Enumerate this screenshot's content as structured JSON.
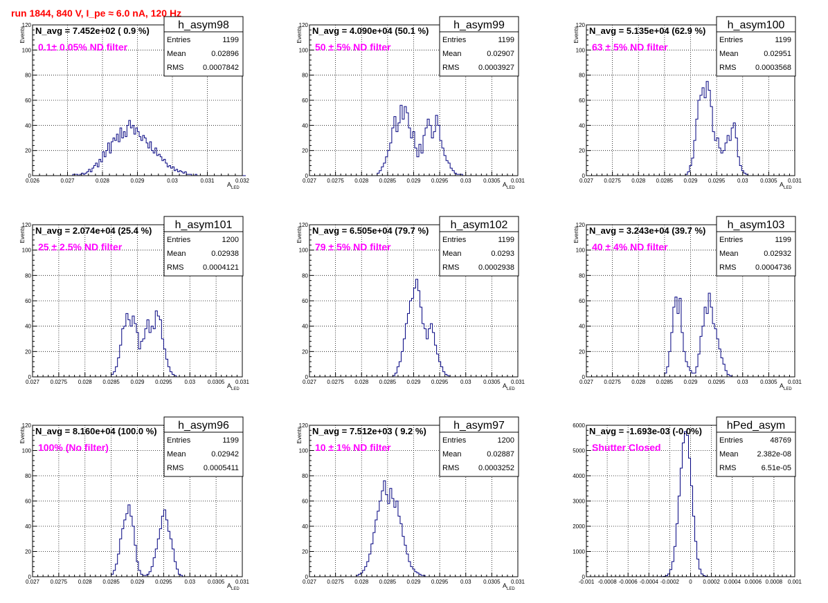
{
  "page": {
    "title": "run 1844,   840 V, I_pe ≈ 6.0 nA, 120 Hz"
  },
  "colors": {
    "title": "#ff0000",
    "histogram": "#00007f",
    "annotation": "#ff00ff",
    "grid": "#000000",
    "text": "#000000"
  },
  "chart_data": [
    {
      "type": "bar",
      "name": "h_asym98",
      "navg": "N_avg = 7.452e+02 ( 0.9 %)",
      "annotation": "0.1± 0.05% ND filter",
      "stats": [
        [
          "Entries",
          "1199"
        ],
        [
          "Mean",
          "0.02896"
        ],
        [
          "RMS",
          "0.0007842"
        ]
      ],
      "ylabel": "Events",
      "xlabel": "A",
      "xlabel_sub": "LED",
      "xlim": [
        0.026,
        0.032
      ],
      "ylim": [
        0,
        120
      ],
      "xticks": [
        0.026,
        0.027,
        0.028,
        0.029,
        0.03,
        0.031,
        0.032
      ],
      "xtick_labels": [
        "0.026",
        "0.027",
        "0.028",
        "0.029",
        "0.03",
        "0.031",
        "0.032"
      ],
      "yticks": [
        0,
        20,
        40,
        60,
        80,
        100,
        120
      ],
      "ytick_labels": [
        "0",
        "20",
        "40",
        "60",
        "80",
        "100",
        "120"
      ],
      "bin_start": 0.0265,
      "bin_width": 5e-05,
      "values": [
        0,
        0,
        0,
        0,
        0,
        0,
        0,
        0,
        0,
        0,
        0,
        0,
        0,
        1,
        1,
        1,
        0,
        1,
        2,
        1,
        2,
        3,
        5,
        3,
        6,
        8,
        10,
        7,
        13,
        11,
        19,
        15,
        20,
        26,
        18,
        27,
        30,
        28,
        33,
        27,
        38,
        30,
        35,
        31,
        40,
        44,
        38,
        40,
        33,
        38,
        35,
        31,
        28,
        32,
        30,
        26,
        22,
        27,
        20,
        18,
        22,
        16,
        17,
        15,
        12,
        13,
        10,
        7,
        8,
        6,
        7,
        4,
        5,
        3,
        4,
        3,
        2,
        3,
        1,
        1,
        1,
        0,
        0,
        1,
        0,
        0,
        0,
        0,
        0,
        0,
        0,
        0,
        0,
        0,
        0,
        0,
        0,
        0,
        0,
        0,
        0,
        0,
        0,
        0,
        0,
        0,
        0,
        0,
        0,
        0,
        0,
        0
      ]
    },
    {
      "type": "bar",
      "name": "h_asym99",
      "navg": "N_avg = 4.090e+04 (50.1 %)",
      "annotation": "50 ± 5% ND filter",
      "stats": [
        [
          "Entries",
          "1199"
        ],
        [
          "Mean",
          "0.02907"
        ],
        [
          "RMS",
          "0.0003927"
        ]
      ],
      "ylabel": "Events",
      "xlabel": "A",
      "xlabel_sub": "LED",
      "xlim": [
        0.027,
        0.031
      ],
      "ylim": [
        0,
        120
      ],
      "xticks": [
        0.027,
        0.0275,
        0.028,
        0.0285,
        0.029,
        0.0295,
        0.03,
        0.0305,
        0.031
      ],
      "xtick_labels": [
        "0.027",
        "0.0275",
        "0.028",
        "0.0285",
        "0.029",
        "0.0295",
        "0.03",
        "0.0305",
        "0.031"
      ],
      "yticks": [
        0,
        20,
        40,
        60,
        80,
        100,
        120
      ],
      "ytick_labels": [
        "0",
        "20",
        "40",
        "60",
        "80",
        "100",
        "120"
      ],
      "bin_start": 0.0283,
      "bin_width": 4e-05,
      "values": [
        2,
        4,
        7,
        10,
        15,
        20,
        26,
        38,
        47,
        35,
        42,
        56,
        45,
        55,
        50,
        38,
        30,
        35,
        22,
        15,
        25,
        18,
        32,
        38,
        45,
        40,
        30,
        35,
        48,
        40,
        28,
        22,
        16,
        12,
        10,
        6,
        4,
        2,
        1,
        1,
        1,
        0,
        0,
        0,
        0
      ]
    },
    {
      "type": "bar",
      "name": "h_asym100",
      "navg": "N_avg = 5.135e+04 (62.9 %)",
      "annotation": "63 ± 5% ND filter",
      "stats": [
        [
          "Entries",
          "1199"
        ],
        [
          "Mean",
          "0.02951"
        ],
        [
          "RMS",
          "0.0003568"
        ]
      ],
      "ylabel": "Events",
      "xlabel": "A",
      "xlabel_sub": "LED",
      "xlim": [
        0.027,
        0.031
      ],
      "ylim": [
        0,
        120
      ],
      "xticks": [
        0.027,
        0.0275,
        0.028,
        0.0285,
        0.029,
        0.0295,
        0.03,
        0.0305,
        0.031
      ],
      "xtick_labels": [
        "0.027",
        "0.0275",
        "0.028",
        "0.0285",
        "0.029",
        "0.0295",
        "0.03",
        "0.0305",
        "0.031"
      ],
      "yticks": [
        0,
        20,
        40,
        60,
        80,
        100,
        120
      ],
      "ytick_labels": [
        "0",
        "20",
        "40",
        "60",
        "80",
        "100",
        "120"
      ],
      "bin_start": 0.0289,
      "bin_width": 4e-05,
      "values": [
        1,
        3,
        8,
        14,
        28,
        45,
        60,
        64,
        70,
        62,
        75,
        68,
        55,
        35,
        28,
        30,
        22,
        18,
        20,
        26,
        32,
        28,
        38,
        42,
        30,
        15,
        8,
        4,
        2,
        1,
        0,
        0
      ]
    },
    {
      "type": "bar",
      "name": "h_asym101",
      "navg": "N_avg = 2.074e+04 (25.4 %)",
      "annotation": "25 ± 2.5% ND filter",
      "stats": [
        [
          "Entries",
          "1200"
        ],
        [
          "Mean",
          "0.02938"
        ],
        [
          "RMS",
          "0.0004121"
        ]
      ],
      "ylabel": "Events",
      "xlabel": "A",
      "xlabel_sub": "LED",
      "xlim": [
        0.027,
        0.031
      ],
      "ylim": [
        0,
        120
      ],
      "xticks": [
        0.027,
        0.0275,
        0.028,
        0.0285,
        0.029,
        0.0295,
        0.03,
        0.0305,
        0.031
      ],
      "xtick_labels": [
        "0.027",
        "0.0275",
        "0.028",
        "0.0285",
        "0.029",
        "0.0295",
        "0.03",
        "0.0305",
        "0.031"
      ],
      "yticks": [
        0,
        20,
        40,
        60,
        80,
        100,
        120
      ],
      "ytick_labels": [
        "0",
        "20",
        "40",
        "60",
        "80",
        "100",
        "120"
      ],
      "bin_start": 0.0285,
      "bin_width": 4e-05,
      "values": [
        2,
        4,
        8,
        15,
        25,
        38,
        40,
        50,
        45,
        40,
        48,
        42,
        35,
        22,
        28,
        30,
        38,
        45,
        35,
        40,
        38,
        52,
        48,
        45,
        30,
        22,
        14,
        8,
        4,
        2,
        1,
        0
      ]
    },
    {
      "type": "bar",
      "name": "h_asym102",
      "navg": "N_avg = 6.505e+04 (79.7 %)",
      "annotation": "79 ± 5% ND filter",
      "stats": [
        [
          "Entries",
          "1199"
        ],
        [
          "Mean",
          "0.0293"
        ],
        [
          "RMS",
          "0.0002938"
        ]
      ],
      "ylabel": "Events",
      "xlabel": "A",
      "xlabel_sub": "LED",
      "xlim": [
        0.027,
        0.031
      ],
      "ylim": [
        0,
        120
      ],
      "xticks": [
        0.027,
        0.0275,
        0.028,
        0.0285,
        0.029,
        0.0295,
        0.03,
        0.0305,
        0.031
      ],
      "xtick_labels": [
        "0.027",
        "0.0275",
        "0.028",
        "0.0285",
        "0.029",
        "0.0295",
        "0.03",
        "0.0305",
        "0.031"
      ],
      "yticks": [
        0,
        20,
        40,
        60,
        80,
        100,
        120
      ],
      "ytick_labels": [
        "0",
        "20",
        "40",
        "60",
        "80",
        "100",
        "120"
      ],
      "bin_start": 0.0286,
      "bin_width": 4e-05,
      "values": [
        1,
        3,
        8,
        12,
        20,
        30,
        42,
        50,
        60,
        62,
        70,
        77,
        68,
        55,
        42,
        38,
        30,
        38,
        42,
        35,
        25,
        18,
        12,
        8,
        4,
        2,
        1,
        0
      ]
    },
    {
      "type": "bar",
      "name": "h_asym103",
      "navg": "N_avg = 3.243e+04 (39.7 %)",
      "annotation": "40 ± 4% ND filter",
      "stats": [
        [
          "Entries",
          "1199"
        ],
        [
          "Mean",
          "0.02932"
        ],
        [
          "RMS",
          "0.0004736"
        ]
      ],
      "ylabel": "Events",
      "xlabel": "A",
      "xlabel_sub": "LED",
      "xlim": [
        0.027,
        0.031
      ],
      "ylim": [
        0,
        120
      ],
      "xticks": [
        0.027,
        0.0275,
        0.028,
        0.0285,
        0.029,
        0.0295,
        0.03,
        0.0305,
        0.031
      ],
      "xtick_labels": [
        "0.027",
        "0.0275",
        "0.028",
        "0.0285",
        "0.029",
        "0.0295",
        "0.03",
        "0.0305",
        "0.031"
      ],
      "yticks": [
        0,
        20,
        40,
        60,
        80,
        100,
        120
      ],
      "ytick_labels": [
        "0",
        "20",
        "40",
        "60",
        "80",
        "100",
        "120"
      ],
      "bin_start": 0.0285,
      "bin_width": 4e-05,
      "values": [
        3,
        8,
        20,
        35,
        55,
        63,
        50,
        62,
        35,
        20,
        12,
        8,
        5,
        3,
        3,
        8,
        18,
        32,
        40,
        55,
        50,
        66,
        55,
        42,
        38,
        30,
        22,
        15,
        10,
        5,
        2,
        1,
        0
      ]
    },
    {
      "type": "bar",
      "name": "h_asym96",
      "navg": "N_avg = 8.160e+04 (100.0 %)",
      "annotation": "100% (No filter)",
      "stats": [
        [
          "Entries",
          "1199"
        ],
        [
          "Mean",
          "0.02942"
        ],
        [
          "RMS",
          "0.0005411"
        ]
      ],
      "ylabel": "Events",
      "xlabel": "A",
      "xlabel_sub": "LED",
      "xlim": [
        0.027,
        0.031
      ],
      "ylim": [
        0,
        120
      ],
      "xticks": [
        0.027,
        0.0275,
        0.028,
        0.0285,
        0.029,
        0.0295,
        0.03,
        0.0305,
        0.031
      ],
      "xtick_labels": [
        "0.027",
        "0.0275",
        "0.028",
        "0.0285",
        "0.029",
        "0.0295",
        "0.03",
        "0.0305",
        "0.031"
      ],
      "yticks": [
        0,
        20,
        40,
        60,
        80,
        100,
        120
      ],
      "ytick_labels": [
        "0",
        "20",
        "40",
        "60",
        "80",
        "100",
        "120"
      ],
      "bin_start": 0.0285,
      "bin_width": 4e-05,
      "values": [
        2,
        5,
        10,
        18,
        30,
        38,
        45,
        50,
        57,
        48,
        40,
        25,
        12,
        5,
        2,
        1,
        1,
        2,
        4,
        8,
        15,
        22,
        30,
        38,
        48,
        53,
        45,
        36,
        30,
        22,
        12,
        6,
        2,
        1,
        0
      ]
    },
    {
      "type": "bar",
      "name": "h_asym97",
      "navg": "N_avg = 7.512e+03 ( 9.2 %)",
      "annotation": "10 ± 1% ND filter",
      "stats": [
        [
          "Entries",
          "1200"
        ],
        [
          "Mean",
          "0.02887"
        ],
        [
          "RMS",
          "0.0003252"
        ]
      ],
      "ylabel": "Events",
      "xlabel": "A",
      "xlabel_sub": "LED",
      "xlim": [
        0.027,
        0.031
      ],
      "ylim": [
        0,
        120
      ],
      "xticks": [
        0.027,
        0.0275,
        0.028,
        0.0285,
        0.029,
        0.0295,
        0.03,
        0.0305,
        0.031
      ],
      "xtick_labels": [
        "0.027",
        "0.0275",
        "0.028",
        "0.0285",
        "0.029",
        "0.0295",
        "0.03",
        "0.0305",
        "0.031"
      ],
      "yticks": [
        0,
        20,
        40,
        60,
        80,
        100,
        120
      ],
      "ytick_labels": [
        "0",
        "20",
        "40",
        "60",
        "80",
        "100",
        "120"
      ],
      "bin_start": 0.0279,
      "bin_width": 4e-05,
      "values": [
        1,
        2,
        3,
        5,
        8,
        12,
        18,
        26,
        35,
        45,
        52,
        60,
        68,
        76,
        65,
        58,
        70,
        62,
        55,
        60,
        48,
        42,
        32,
        25,
        18,
        12,
        8,
        6,
        4,
        3,
        2,
        1,
        1,
        0
      ]
    },
    {
      "type": "bar",
      "name": "hPed_asym",
      "navg": "N_avg = -1.693e-03 (-0.0%)",
      "annotation": "Shutter Closed",
      "stats": [
        [
          "Entries",
          "48769"
        ],
        [
          "Mean",
          "2.382e-08"
        ],
        [
          "RMS",
          "6.51e-05"
        ]
      ],
      "ylabel": "",
      "xlabel": "",
      "xlabel_sub": "",
      "xlim": [
        -0.001,
        0.001
      ],
      "ylim": [
        0,
        6000
      ],
      "xticks": [
        -0.001,
        -0.0008,
        -0.0006,
        -0.0004,
        -0.0002,
        0,
        0.0002,
        0.0004,
        0.0006,
        0.0008,
        0.001
      ],
      "xtick_labels": [
        "-0.001",
        "-0.0008",
        "-0.0006",
        "-0.0004",
        "-0.0002",
        "0",
        "0.0002",
        "0.0004",
        "0.0006",
        "0.0008",
        "0.001"
      ],
      "yticks": [
        0,
        1000,
        2000,
        3000,
        4000,
        5000,
        6000
      ],
      "ytick_labels": [
        "0",
        "1000",
        "2000",
        "3000",
        "4000",
        "5000",
        "6000"
      ],
      "bin_start": -0.0003,
      "bin_width": 2e-05,
      "values": [
        2,
        5,
        15,
        40,
        110,
        280,
        600,
        1200,
        2100,
        3200,
        4300,
        5300,
        5750,
        5600,
        4700,
        3600,
        2400,
        1400,
        700,
        300,
        110,
        40,
        12,
        3,
        0,
        0,
        0,
        0,
        0,
        0
      ]
    }
  ]
}
